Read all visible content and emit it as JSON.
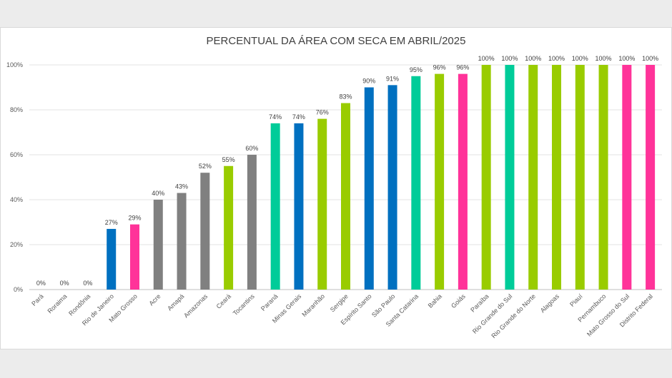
{
  "chart_data": {
    "type": "bar",
    "title": "PERCENTUAL DA ÁREA COM SECA EM ABRIL/2025",
    "xlabel": "",
    "ylabel": "",
    "ylim": [
      0,
      100
    ],
    "yticks": [
      "0%",
      "20%",
      "40%",
      "60%",
      "80%",
      "100%"
    ],
    "grid": true,
    "legend": "none",
    "categories": [
      "Pará",
      "Roraima",
      "Rondônia",
      "Rio de Janeiro",
      "Mato Grosso",
      "Acre",
      "Amapá",
      "Amazonas",
      "Ceará",
      "Tocantins",
      "Paraná",
      "Minas Gerais",
      "Maranhão",
      "Sergipe",
      "Espírito Santo",
      "São Paulo",
      "Santa Catarina",
      "Bahia",
      "Goiás",
      "Paraíba",
      "Rio Grande do Sul",
      "Rio Grande do Norte",
      "Alagoas",
      "Piauí",
      "Pernambuco",
      "Mato Grosso do Sul",
      "Distrito Federal"
    ],
    "values": [
      0,
      0,
      0,
      27,
      29,
      40,
      43,
      52,
      55,
      60,
      74,
      74,
      76,
      83,
      90,
      91,
      95,
      96,
      96,
      100,
      100,
      100,
      100,
      100,
      100,
      100,
      100
    ],
    "labels": [
      "0%",
      "0%",
      "0%",
      "27%",
      "29%",
      "40%",
      "43%",
      "52%",
      "55%",
      "60%",
      "74%",
      "74%",
      "76%",
      "83%",
      "90%",
      "91%",
      "95%",
      "96%",
      "96%",
      "100%",
      "100%",
      "100%",
      "100%",
      "100%",
      "100%",
      "100%",
      "100%"
    ],
    "colors": [
      "#808080",
      "#808080",
      "#808080",
      "#0070C0",
      "#FF3399",
      "#808080",
      "#808080",
      "#808080",
      "#99CC00",
      "#808080",
      "#00CC99",
      "#0070C0",
      "#99CC00",
      "#99CC00",
      "#0070C0",
      "#0070C0",
      "#00CC99",
      "#99CC00",
      "#FF3399",
      "#99CC00",
      "#00CC99",
      "#99CC00",
      "#99CC00",
      "#99CC00",
      "#99CC00",
      "#FF3399",
      "#FF3399"
    ]
  }
}
